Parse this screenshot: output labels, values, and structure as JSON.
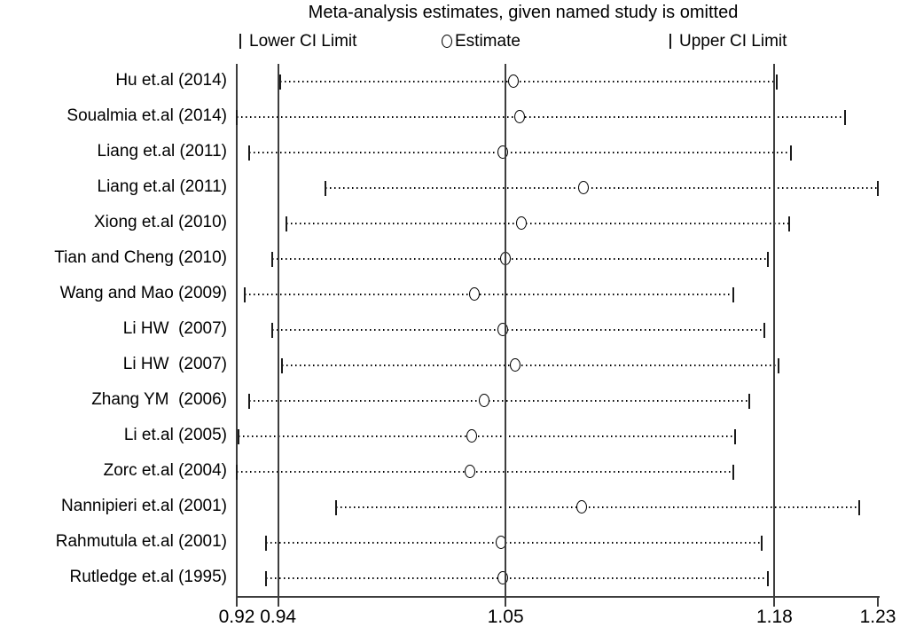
{
  "title": "Meta-analysis estimates, given named study is omitted",
  "legend": {
    "lower_label": "Lower CI Limit",
    "estimate_label": "Estimate",
    "upper_label": "Upper CI Limit"
  },
  "colors": {
    "background": "#ffffff",
    "text": "#000000",
    "line": "#3d3d3d",
    "marker": "#000000"
  },
  "chart_data": {
    "type": "scatter",
    "subtype": "leave-one-out-sensitivity-forest",
    "title": "Meta-analysis estimates, given named study is omitted",
    "xlabel": "",
    "ylabel": "",
    "xlim": [
      0.92,
      1.23
    ],
    "x_ticks": [
      0.92,
      0.94,
      1.05,
      1.18,
      1.23
    ],
    "x_tick_labels": [
      "0.92",
      "0.94",
      "1.05",
      "1.18",
      "1.23"
    ],
    "reference_lines": [
      0.92,
      0.94,
      1.05,
      1.18
    ],
    "grid": false,
    "legend_position": "top",
    "series_names": [
      "Lower CI Limit",
      "Estimate",
      "Upper CI Limit"
    ],
    "studies": [
      {
        "label": "Hu et.al (2014)",
        "lower": 0.941,
        "estimate": 1.054,
        "upper": 1.181
      },
      {
        "label": "Soualmia et.al (2014)",
        "lower": 0.92,
        "estimate": 1.057,
        "upper": 1.214
      },
      {
        "label": "Liang et.al (2011)",
        "lower": 0.926,
        "estimate": 1.049,
        "upper": 1.188
      },
      {
        "label": "Liang et.al (2011)",
        "lower": 0.963,
        "estimate": 1.088,
        "upper": 1.23
      },
      {
        "label": "Xiong et.al (2010)",
        "lower": 0.944,
        "estimate": 1.058,
        "upper": 1.187
      },
      {
        "label": "Tian and Cheng (2010)",
        "lower": 0.937,
        "estimate": 1.05,
        "upper": 1.177
      },
      {
        "label": "Wang and Mao (2009)",
        "lower": 0.924,
        "estimate": 1.035,
        "upper": 1.16
      },
      {
        "label": "Li HW  (2007)",
        "lower": 0.937,
        "estimate": 1.049,
        "upper": 1.175
      },
      {
        "label": "Li HW  (2007)",
        "lower": 0.942,
        "estimate": 1.055,
        "upper": 1.182
      },
      {
        "label": "Zhang YM  (2006)",
        "lower": 0.926,
        "estimate": 1.04,
        "upper": 1.168
      },
      {
        "label": "Li et.al (2005)",
        "lower": 0.921,
        "estimate": 1.034,
        "upper": 1.161
      },
      {
        "label": "Zorc et.al (2004)",
        "lower": 0.92,
        "estimate": 1.033,
        "upper": 1.16
      },
      {
        "label": "Nannipieri et.al (2001)",
        "lower": 0.968,
        "estimate": 1.087,
        "upper": 1.221
      },
      {
        "label": "Rahmutula et.al (2001)",
        "lower": 0.934,
        "estimate": 1.048,
        "upper": 1.174
      },
      {
        "label": "Rutledge et.al (1995)",
        "lower": 0.934,
        "estimate": 1.049,
        "upper": 1.177
      }
    ]
  }
}
